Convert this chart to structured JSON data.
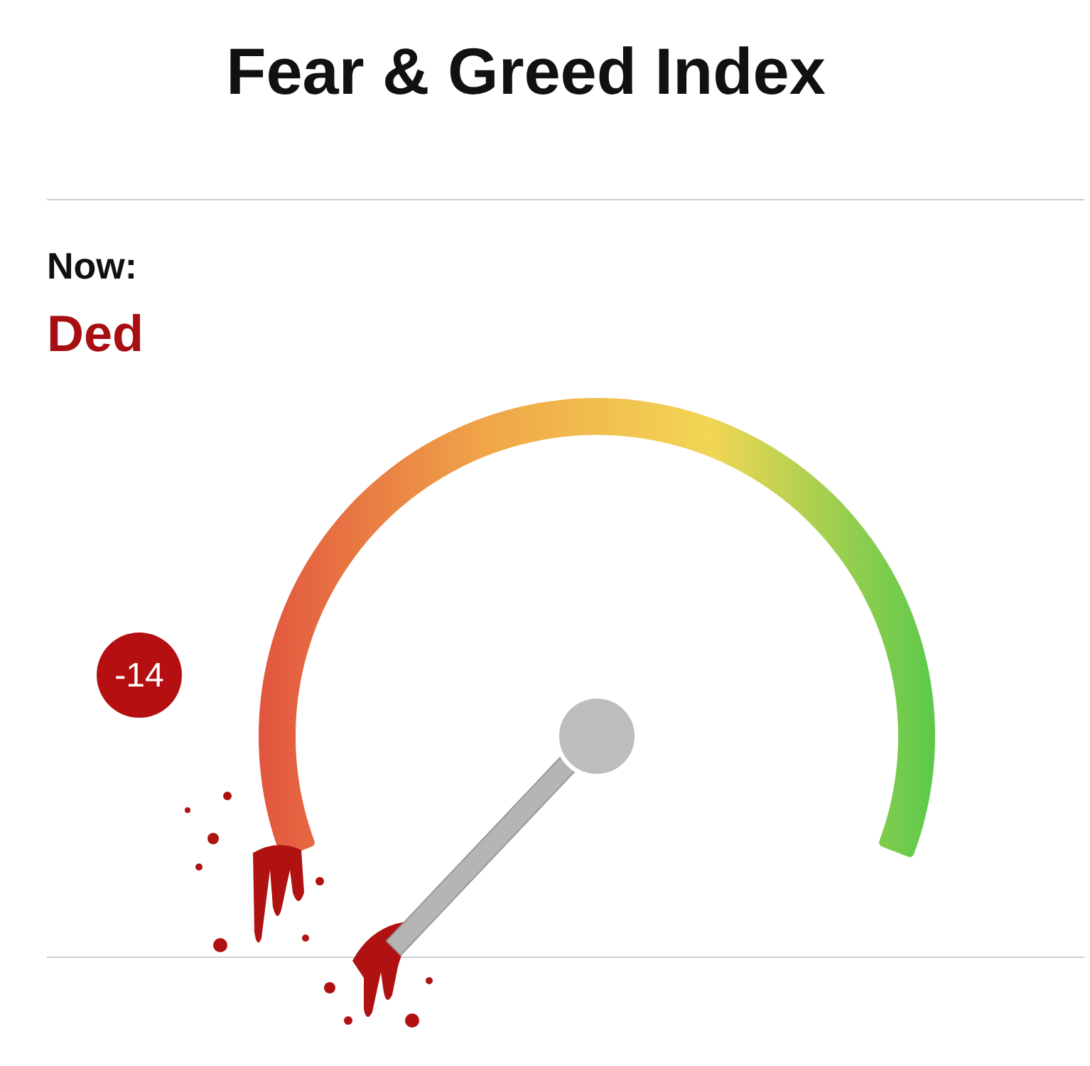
{
  "chart_data": {
    "type": "other",
    "title": "Fear & Greed Index",
    "annotations": [
      "Now:",
      "Ded"
    ],
    "values": [
      -14
    ],
    "data_labels": true
  }
}
